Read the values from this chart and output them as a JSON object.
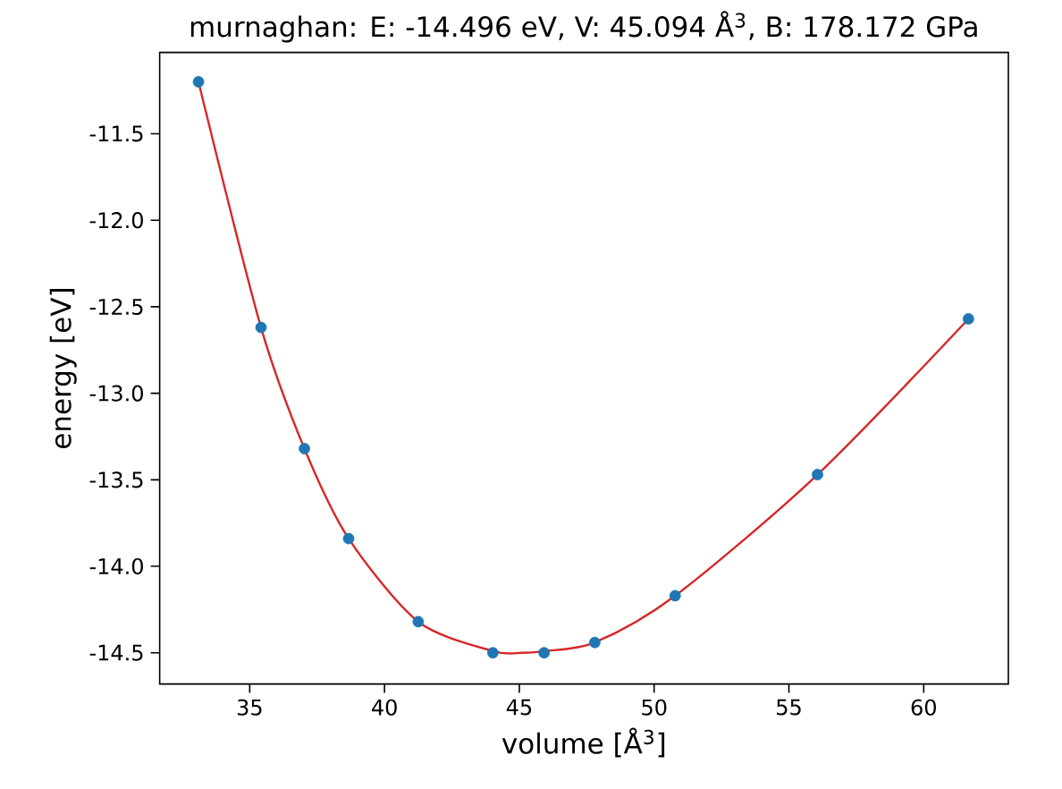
{
  "chart_data": {
    "type": "scatter",
    "title": "murnaghan: E: -14.496 eV, V: 45.094 Å$^{3}$, B: 178.172 GPa",
    "xlabel": "volume [Å$^{3}$]",
    "ylabel": "energy [eV]",
    "xlim": [
      31.66,
      63.14
    ],
    "ylim": [
      -14.68,
      -11.03
    ],
    "xticks": [
      35,
      40,
      45,
      50,
      55,
      60
    ],
    "yticks": [
      -14.5,
      {
        "value": -14.0,
        "label": "-14.0"
      },
      -13.5,
      {
        "value": -13.0,
        "label": "-13.0"
      },
      -12.5,
      {
        "value": -12.0,
        "label": "-12.0"
      },
      -11.5
    ],
    "grid": false,
    "series": [
      {
        "type": "line",
        "color": "#d62728",
        "marker": "none",
        "x": [
          33.1,
          35.42,
          37.03,
          38.67,
          41.25,
          44.02,
          45.09,
          45.92,
          47.8,
          50.78,
          56.06,
          61.66
        ],
        "values": [
          -11.2,
          -12.62,
          -13.32,
          -13.84,
          -14.32,
          -14.49,
          -14.5,
          -14.49,
          -14.44,
          -14.17,
          -13.47,
          -12.57
        ]
      },
      {
        "color": "#1f77b4",
        "marker": "circle",
        "x": [
          33.1,
          35.42,
          37.03,
          38.67,
          41.25,
          44.02,
          45.92,
          47.8,
          50.78,
          56.06,
          61.66
        ],
        "values": [
          -11.2,
          -12.62,
          -13.32,
          -13.84,
          -14.32,
          -14.5,
          -14.5,
          -14.44,
          -14.17,
          -13.47,
          -12.57
        ]
      }
    ]
  }
}
